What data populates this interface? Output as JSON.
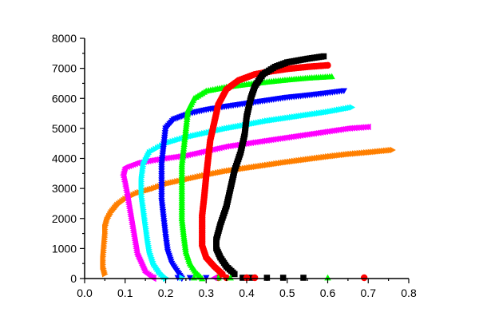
{
  "chart_data": {
    "type": "scatter",
    "title": "",
    "xlabel": "",
    "ylabel": "",
    "xlim": [
      0.0,
      0.8
    ],
    "ylim": [
      0,
      8000
    ],
    "xticks": [
      "0.0",
      "0.1",
      "0.2",
      "0.3",
      "0.4",
      "0.5",
      "0.6",
      "0.7",
      "0.8"
    ],
    "yticks": [
      "0",
      "1000",
      "2000",
      "3000",
      "4000",
      "5000",
      "6000",
      "7000",
      "8000"
    ],
    "grid": false,
    "legend": "none",
    "series": [
      {
        "color": "#ff7f00",
        "marker": "triangle-right",
        "points": [
          [
            0.05,
            150
          ],
          [
            0.045,
            400
          ],
          [
            0.045,
            650
          ],
          [
            0.05,
            1450
          ],
          [
            0.05,
            1700
          ],
          [
            0.055,
            1950
          ],
          [
            0.065,
            2200
          ],
          [
            0.08,
            2450
          ],
          [
            0.1,
            2650
          ],
          [
            0.13,
            2850
          ],
          [
            0.17,
            3000
          ],
          [
            0.2,
            3150
          ],
          [
            0.25,
            3300
          ],
          [
            0.3,
            3450
          ],
          [
            0.35,
            3580
          ],
          [
            0.4,
            3680
          ],
          [
            0.45,
            3780
          ],
          [
            0.5,
            3880
          ],
          [
            0.55,
            3970
          ],
          [
            0.6,
            4060
          ],
          [
            0.65,
            4140
          ],
          [
            0.7,
            4200
          ],
          [
            0.76,
            4280
          ]
        ]
      },
      {
        "color": "#ff00ff",
        "marker": "triangle-left",
        "points": [
          [
            0.17,
            0
          ],
          [
            0.15,
            200
          ],
          [
            0.14,
            500
          ],
          [
            0.13,
            800
          ],
          [
            0.125,
            1200
          ],
          [
            0.12,
            1600
          ],
          [
            0.115,
            2000
          ],
          [
            0.11,
            2400
          ],
          [
            0.105,
            2800
          ],
          [
            0.1,
            3150
          ],
          [
            0.095,
            3450
          ],
          [
            0.1,
            3700
          ],
          [
            0.13,
            3850
          ],
          [
            0.18,
            3970
          ],
          [
            0.25,
            4100
          ],
          [
            0.3,
            4250
          ],
          [
            0.35,
            4400
          ],
          [
            0.4,
            4500
          ],
          [
            0.45,
            4600
          ],
          [
            0.5,
            4700
          ],
          [
            0.55,
            4800
          ],
          [
            0.6,
            4900
          ],
          [
            0.65,
            5000
          ],
          [
            0.7,
            5050
          ]
        ]
      },
      {
        "color": "#00ffff",
        "marker": "triangle-right",
        "points": [
          [
            0.2,
            0
          ],
          [
            0.185,
            200
          ],
          [
            0.17,
            500
          ],
          [
            0.16,
            900
          ],
          [
            0.155,
            1300
          ],
          [
            0.15,
            1800
          ],
          [
            0.145,
            2300
          ],
          [
            0.14,
            2800
          ],
          [
            0.14,
            3300
          ],
          [
            0.145,
            3800
          ],
          [
            0.16,
            4200
          ],
          [
            0.2,
            4500
          ],
          [
            0.25,
            4700
          ],
          [
            0.3,
            4850
          ],
          [
            0.35,
            5000
          ],
          [
            0.4,
            5120
          ],
          [
            0.45,
            5250
          ],
          [
            0.5,
            5350
          ],
          [
            0.55,
            5450
          ],
          [
            0.6,
            5550
          ],
          [
            0.66,
            5700
          ]
        ]
      },
      {
        "color": "#0000ff",
        "marker": "triangle-down",
        "points": [
          [
            0.24,
            0
          ],
          [
            0.23,
            200
          ],
          [
            0.215,
            500
          ],
          [
            0.205,
            900
          ],
          [
            0.2,
            1400
          ],
          [
            0.195,
            2000
          ],
          [
            0.19,
            2600
          ],
          [
            0.19,
            3200
          ],
          [
            0.19,
            3800
          ],
          [
            0.195,
            4400
          ],
          [
            0.2,
            5000
          ],
          [
            0.22,
            5300
          ],
          [
            0.26,
            5500
          ],
          [
            0.3,
            5620
          ],
          [
            0.35,
            5730
          ],
          [
            0.4,
            5830
          ],
          [
            0.45,
            5930
          ],
          [
            0.5,
            6030
          ],
          [
            0.55,
            6100
          ],
          [
            0.6,
            6180
          ],
          [
            0.64,
            6250
          ]
        ]
      },
      {
        "color": "#00ff00",
        "marker": "triangle-up",
        "points": [
          [
            0.29,
            0
          ],
          [
            0.275,
            200
          ],
          [
            0.26,
            500
          ],
          [
            0.25,
            900
          ],
          [
            0.245,
            1400
          ],
          [
            0.24,
            2000
          ],
          [
            0.24,
            2600
          ],
          [
            0.24,
            3200
          ],
          [
            0.24,
            3800
          ],
          [
            0.245,
            4400
          ],
          [
            0.25,
            5000
          ],
          [
            0.255,
            5600
          ],
          [
            0.27,
            6000
          ],
          [
            0.3,
            6250
          ],
          [
            0.35,
            6380
          ],
          [
            0.4,
            6470
          ],
          [
            0.45,
            6550
          ],
          [
            0.5,
            6620
          ],
          [
            0.55,
            6680
          ],
          [
            0.61,
            6730
          ]
        ]
      },
      {
        "color": "#ff0000",
        "marker": "circle",
        "points": [
          [
            0.34,
            150
          ],
          [
            0.32,
            400
          ],
          [
            0.3,
            700
          ],
          [
            0.29,
            1100
          ],
          [
            0.29,
            1600
          ],
          [
            0.29,
            2100
          ],
          [
            0.295,
            2700
          ],
          [
            0.3,
            3400
          ],
          [
            0.305,
            4000
          ],
          [
            0.31,
            4600
          ],
          [
            0.32,
            5200
          ],
          [
            0.33,
            5800
          ],
          [
            0.35,
            6300
          ],
          [
            0.38,
            6600
          ],
          [
            0.42,
            6800
          ],
          [
            0.46,
            6900
          ],
          [
            0.5,
            6980
          ],
          [
            0.55,
            7050
          ],
          [
            0.6,
            7100
          ]
        ]
      },
      {
        "color": "#000000",
        "marker": "square",
        "points": [
          [
            0.37,
            150
          ],
          [
            0.35,
            400
          ],
          [
            0.335,
            700
          ],
          [
            0.325,
            1000
          ],
          [
            0.325,
            1300
          ],
          [
            0.335,
            1800
          ],
          [
            0.35,
            2400
          ],
          [
            0.36,
            3000
          ],
          [
            0.37,
            3600
          ],
          [
            0.385,
            4200
          ],
          [
            0.395,
            4800
          ],
          [
            0.4,
            5400
          ],
          [
            0.41,
            6000
          ],
          [
            0.42,
            6400
          ],
          [
            0.44,
            6800
          ],
          [
            0.47,
            7050
          ],
          [
            0.5,
            7200
          ],
          [
            0.55,
            7320
          ],
          [
            0.59,
            7400
          ]
        ]
      }
    ],
    "baseline_markers": [
      {
        "color": "#000000",
        "marker": "square",
        "x": [
          0.39,
          0.41,
          0.45,
          0.49,
          0.54
        ]
      },
      {
        "color": "#ff0000",
        "marker": "circle",
        "x": [
          0.33,
          0.35,
          0.4,
          0.42,
          0.69
        ]
      },
      {
        "color": "#00ff00",
        "marker": "triangle-up",
        "x": [
          0.27,
          0.33,
          0.36,
          0.6
        ]
      },
      {
        "color": "#0000ff",
        "marker": "triangle-down",
        "x": [
          0.23,
          0.26,
          0.3
        ]
      },
      {
        "color": "#00ffff",
        "marker": "triangle-right",
        "x": [
          0.2,
          0.24
        ]
      },
      {
        "color": "#ff00ff",
        "marker": "triangle-left",
        "x": [
          0.17,
          0.32
        ]
      }
    ]
  }
}
